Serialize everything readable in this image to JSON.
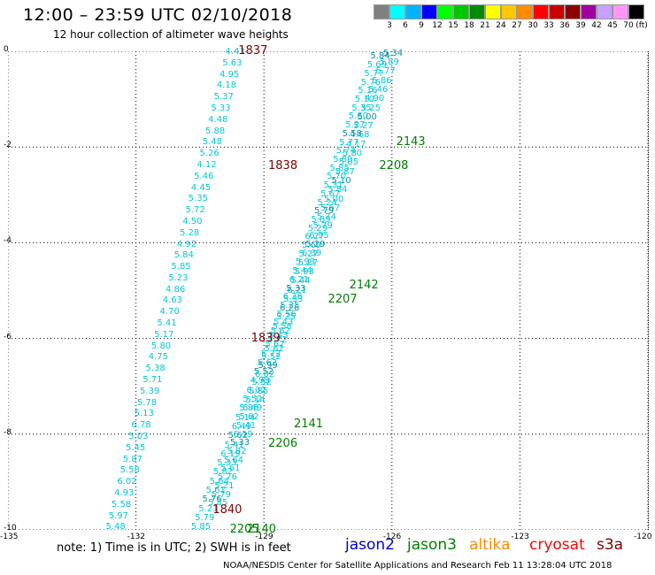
{
  "title": "12:00 – 23:59 UTC 02/10/2018",
  "subtitle": "12 hour collection of altimeter wave heights",
  "colorbar": {
    "colors": [
      "#808080",
      "#00ffff",
      "#00b4ff",
      "#0000ff",
      "#00ff00",
      "#00c800",
      "#008c00",
      "#ffff00",
      "#ffc800",
      "#ff8c00",
      "#ff0000",
      "#c80000",
      "#8c0000",
      "#a000a0",
      "#c8a0ff",
      "#ff96ff",
      "#000000"
    ],
    "labels": [
      "3",
      "6",
      "9",
      "12",
      "15",
      "18",
      "21",
      "24",
      "27",
      "30",
      "33",
      "36",
      "39",
      "42",
      "45",
      "70"
    ],
    "unit": "(ft)"
  },
  "axes": {
    "x_ticks": [
      "-135",
      "-132",
      "-129",
      "-126",
      "-123",
      "-120"
    ],
    "y_ticks": [
      "0",
      "-2",
      "-4",
      "-6",
      "-8",
      "-10"
    ],
    "x_range": [
      -135,
      -120
    ],
    "y_range": [
      -10,
      0
    ]
  },
  "track_a_times": [
    {
      "label": "1837",
      "x": -129.6,
      "y": 0
    },
    {
      "label": "1838",
      "x": -128.9,
      "y": -2.4
    },
    {
      "label": "1839",
      "x": -129.3,
      "y": -6
    },
    {
      "label": "1840",
      "x": -130.2,
      "y": -9.6
    }
  ],
  "track_b_times": [
    {
      "label": "2143",
      "x": -125.9,
      "y": -1.9
    },
    {
      "label": "2208",
      "x": -126.3,
      "y": -2.4
    },
    {
      "label": "2142",
      "x": -127.0,
      "y": -4.9
    },
    {
      "label": "2207",
      "x": -127.5,
      "y": -5.2
    },
    {
      "label": "2141",
      "x": -128.3,
      "y": -7.8
    },
    {
      "label": "2206",
      "x": -128.9,
      "y": -8.2
    },
    {
      "label": "2140",
      "x": -129.4,
      "y": -10
    },
    {
      "label": "2205",
      "x": -129.8,
      "y": -10
    }
  ],
  "track_a_values": [
    "4.43",
    "5.63",
    "4.95",
    "4.18",
    "5.37",
    "5.33",
    "4.48",
    "5.88",
    "5.48",
    "5.26",
    "4.12",
    "5.46",
    "4.45",
    "5.35",
    "5.72",
    "4.50",
    "5.28",
    "4.92",
    "5.84",
    "5.85",
    "5.23",
    "4.86",
    "4.63",
    "4.70",
    "5.41",
    "5.17",
    "5.80",
    "4.75",
    "5.38",
    "5.71",
    "5.39",
    "5.78",
    "5.13",
    "6.78",
    "5.03",
    "5.45",
    "5.87",
    "5.58",
    "6.02",
    "4.93",
    "5.58",
    "5.97",
    "5.48"
  ],
  "track_b_values": [
    "5.34",
    "5.89",
    "5.77",
    "5.86",
    "5.46",
    "4.90",
    "5.25",
    "5.00",
    "5.27",
    "4.68",
    "4.17",
    "5.80",
    "5.05",
    "5.87",
    "5.10",
    "5.84",
    "5.00",
    "5.67",
    "5.74",
    "5.79",
    "6.95",
    "5.29",
    "6.39",
    "5.27",
    "5.93",
    "5.44",
    "6.21",
    "5.33",
    "6.26",
    "5.25",
    "5.58",
    "5.43",
    "5.62",
    "5.72",
    "5.62",
    "5.52",
    "4.99",
    "6.02",
    "5.52",
    "5.85",
    "5.14",
    "6.49",
    "5.62",
    "5.41",
    "6.19",
    "5.33",
    "5.82",
    "5.64",
    "5.61",
    "5.76",
    "5.21",
    "5.79",
    "5.85"
  ],
  "track_c_values": [
    "5.84",
    "5.69",
    "5.77",
    "5.76",
    "5.16",
    "5.10",
    "5.35",
    "5.60",
    "5.27",
    "5.58",
    "5.77",
    "5.74",
    "5.80",
    "5.85",
    "5.70",
    "5.31",
    "5.67",
    "5.24",
    "5.79",
    "5.89",
    "5.29",
    "6.27",
    "5.69",
    "5.27",
    "5.93",
    "5.44",
    "6.21",
    "5.33",
    "6.26",
    "5.25",
    "5.56",
    "5.43",
    "5.62",
    "5.72",
    "5.62",
    "5.52",
    "5.99",
    "6.02",
    "5.52",
    "5.85",
    "5.14",
    "6.49",
    "5.62",
    "5.41",
    "6.19",
    "5.33",
    "5.82",
    "5.64",
    "5.61",
    "5.76",
    "5.21",
    "5.79",
    "5.85"
  ],
  "note": "note:  1) Time is in UTC;  2) SWH is in feet",
  "legend": [
    {
      "name": "jason2",
      "color": "#0000cc"
    },
    {
      "name": "jason3",
      "color": "#008000"
    },
    {
      "name": "altika",
      "color": "#ff8c00"
    },
    {
      "name": "cryosat",
      "color": "#ff0000"
    },
    {
      "name": "s3a",
      "color": "#800000"
    }
  ],
  "credit": "NOAA/NESDIS Center for Satellite Applications and Research    Feb 11 13:28:04 UTC 2018"
}
